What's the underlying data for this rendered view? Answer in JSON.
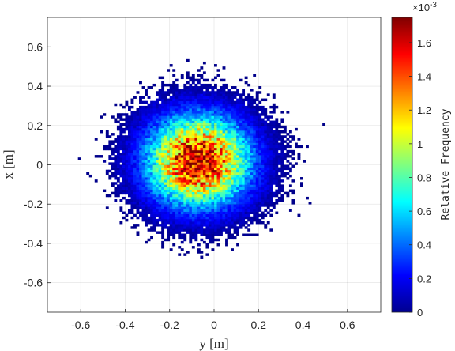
{
  "chart_data": {
    "type": "heatmap",
    "title": "",
    "xlabel": "y [m]",
    "ylabel": "x [m]",
    "xlim": [
      -0.75,
      0.75
    ],
    "ylim": [
      -0.75,
      0.75
    ],
    "xticks": [
      -0.6,
      -0.4,
      -0.2,
      0,
      0.2,
      0.4,
      0.6
    ],
    "xtick_labels": [
      "-0.6",
      "-0.4",
      "-0.2",
      "0",
      "0.2",
      "0.4",
      "0.6"
    ],
    "yticks": [
      -0.6,
      -0.4,
      -0.2,
      0,
      0.2,
      0.4,
      0.6
    ],
    "ytick_labels": [
      "-0.6",
      "-0.4",
      "-0.2",
      "0",
      "0.2",
      "0.4",
      "0.6"
    ],
    "grid": true,
    "bin_width": 0.0125,
    "distribution": {
      "shape": "2D Gaussian-like histogram of relative frequency",
      "center_y": -0.07,
      "center_x": 0.02,
      "peak_relative_frequency": 0.0017,
      "approx_extent": 0.5
    },
    "colorbar": {
      "label": "Relative Frequency",
      "colormap": "jet",
      "min": 0,
      "max": 0.00175,
      "exponent_label_base": "×10",
      "exponent_label_power": "-3",
      "ticks": [
        0,
        0.0002,
        0.0004,
        0.0006,
        0.0008,
        0.001,
        0.0012,
        0.0014,
        0.0016
      ],
      "tick_labels": [
        "0",
        "0.2",
        "0.4",
        "0.6",
        "0.8",
        "1",
        "1.2",
        "1.4",
        "1.6"
      ]
    }
  }
}
